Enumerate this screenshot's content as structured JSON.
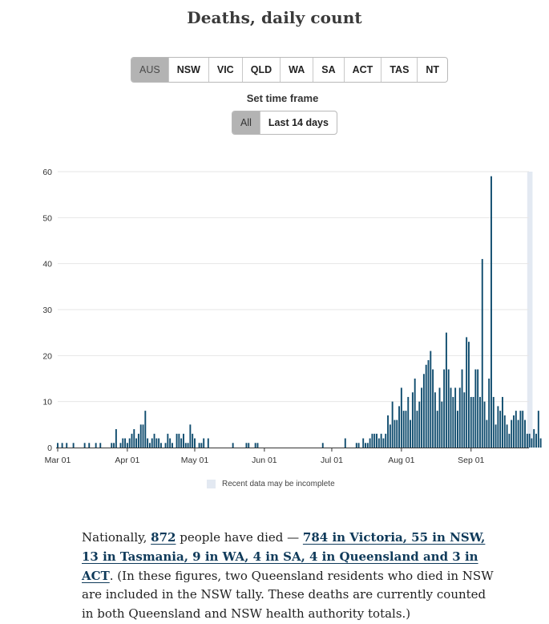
{
  "title": "Deaths, daily count",
  "regions": [
    "AUS",
    "NSW",
    "VIC",
    "QLD",
    "WA",
    "SA",
    "ACT",
    "TAS",
    "NT"
  ],
  "active_region": "AUS",
  "time_frame": {
    "label": "Set time frame",
    "options": [
      "All",
      "Last 14 days"
    ],
    "active": "All"
  },
  "colors": {
    "bar": "#0f4c6e",
    "incomplete": "#e3e9f2",
    "grid": "#e6e6e6",
    "axis": "#333333"
  },
  "legend": {
    "incomplete_label": "Recent data may be incomplete"
  },
  "chart_data": {
    "type": "bar",
    "title": "Deaths, daily count",
    "xlabel": "",
    "ylabel": "",
    "ylim": [
      0,
      60
    ],
    "yticks": [
      0,
      10,
      20,
      30,
      40,
      50,
      60
    ],
    "xticks": [
      {
        "label": "Mar 01",
        "day": 0
      },
      {
        "label": "Apr 01",
        "day": 31
      },
      {
        "label": "May 01",
        "day": 61
      },
      {
        "label": "Jun 01",
        "day": 92
      },
      {
        "label": "Jul 01",
        "day": 122
      },
      {
        "label": "Aug 01",
        "day": 153
      },
      {
        "label": "Sep 01",
        "day": 184
      }
    ],
    "start_date": "Mar 01",
    "values": [
      1,
      0,
      1,
      0,
      1,
      0,
      0,
      1,
      0,
      0,
      0,
      0,
      1,
      0,
      1,
      0,
      0,
      1,
      0,
      1,
      0,
      0,
      0,
      0,
      1,
      1,
      4,
      0,
      1,
      2,
      2,
      1,
      2,
      3,
      4,
      2,
      3,
      5,
      5,
      8,
      2,
      1,
      2,
      3,
      2,
      2,
      1,
      0,
      1,
      3,
      2,
      1,
      0,
      3,
      3,
      2,
      3,
      1,
      1,
      5,
      3,
      2,
      0,
      1,
      1,
      2,
      0,
      2,
      0,
      0,
      0,
      0,
      0,
      0,
      0,
      0,
      0,
      0,
      1,
      0,
      0,
      0,
      0,
      0,
      1,
      1,
      0,
      0,
      1,
      1,
      0,
      0,
      0,
      0,
      0,
      0,
      0,
      0,
      0,
      0,
      0,
      0,
      0,
      0,
      0,
      0,
      0,
      0,
      0,
      0,
      0,
      0,
      0,
      0,
      0,
      0,
      0,
      0,
      1,
      0,
      0,
      0,
      0,
      0,
      0,
      0,
      0,
      0,
      2,
      0,
      0,
      0,
      0,
      1,
      1,
      0,
      2,
      1,
      1,
      2,
      3,
      3,
      3,
      2,
      3,
      2,
      3,
      7,
      5,
      10,
      6,
      6,
      9,
      13,
      8,
      8,
      11,
      6,
      12,
      15,
      8,
      10,
      13,
      16,
      18,
      19,
      21,
      17,
      12,
      8,
      13,
      10,
      17,
      25,
      17,
      13,
      11,
      13,
      8,
      13,
      17,
      12,
      24,
      23,
      11,
      11,
      17,
      17,
      11,
      41,
      10,
      6,
      15,
      59,
      11,
      5,
      9,
      8,
      11,
      7,
      5,
      3,
      6,
      7,
      8,
      6,
      8,
      8,
      6,
      3,
      3,
      2,
      4,
      3,
      8,
      2
    ],
    "incomplete_from_day": 209,
    "incomplete_days": 2,
    "legend": [
      "Recent data may be incomplete"
    ]
  },
  "summary": {
    "p1": "Nationally, ",
    "total": "872",
    "p2": " people have died — ",
    "breakdown": "784 in Victoria, 55 in NSW, 13 in Tasmania, 9 in WA, 4 in SA, 4 in Queensland and 3 in ACT",
    "p3": ". (In these figures, two Queensland residents who died in NSW are included in the NSW tally. These deaths are currently counted in both Queensland and NSW health authority totals.)"
  }
}
